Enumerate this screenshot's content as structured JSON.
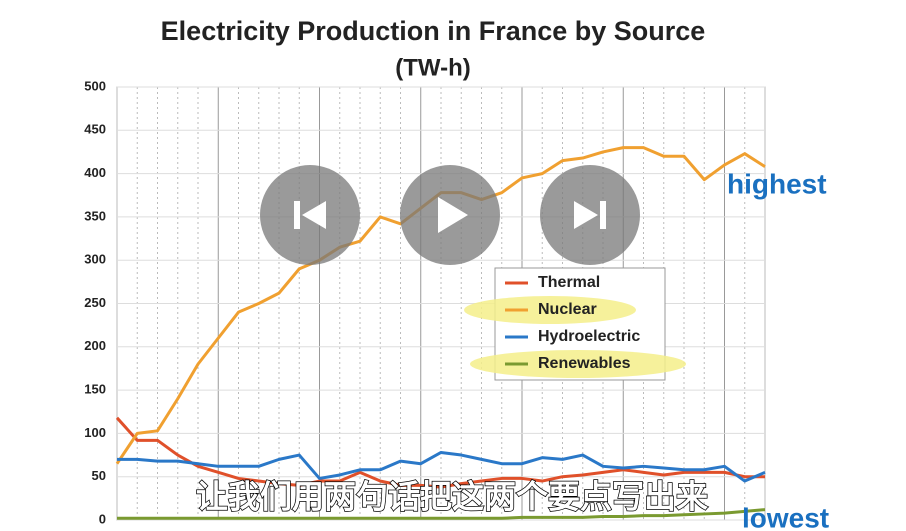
{
  "chart_data": {
    "type": "line",
    "title": "Electricity Production in France by Source",
    "subtitle": "(TW-h)",
    "categories": [
      null,
      null,
      null,
      null,
      null,
      null,
      null,
      null,
      null,
      null,
      null,
      null,
      null,
      null,
      null,
      null,
      null,
      null,
      null,
      null,
      null,
      null,
      null,
      null,
      null,
      null,
      null,
      null,
      null,
      null,
      null,
      null,
      null
    ],
    "series": [
      {
        "name": "Thermal",
        "color": "#e0502a",
        "values": [
          118,
          92,
          92,
          75,
          62,
          55,
          48,
          45,
          42,
          40,
          45,
          45,
          55,
          45,
          40,
          40,
          38,
          42,
          45,
          48,
          48,
          45,
          50,
          52,
          55,
          58,
          55,
          52,
          55,
          55,
          55,
          50,
          50
        ]
      },
      {
        "name": "Nuclear",
        "color": "#f0a030",
        "values": [
          65,
          100,
          103,
          140,
          180,
          210,
          240,
          250,
          262,
          290,
          300,
          315,
          322,
          350,
          342,
          360,
          378,
          378,
          370,
          378,
          395,
          400,
          415,
          418,
          425,
          430,
          430,
          420,
          420,
          393,
          410,
          423,
          408
        ]
      },
      {
        "name": "Hydroelectric",
        "color": "#2a78c8",
        "values": [
          70,
          70,
          68,
          68,
          65,
          62,
          62,
          62,
          70,
          75,
          48,
          52,
          58,
          58,
          68,
          65,
          78,
          75,
          70,
          65,
          65,
          72,
          70,
          75,
          62,
          60,
          62,
          60,
          58,
          58,
          62,
          45,
          55
        ]
      },
      {
        "name": "Renewables",
        "color": "#7a9a30",
        "values": [
          2,
          2,
          2,
          2,
          2,
          2,
          2,
          2,
          2,
          2,
          2,
          2,
          2,
          2,
          2,
          2,
          2,
          2,
          2,
          2,
          3,
          3,
          3,
          3,
          4,
          4,
          5,
          5,
          6,
          7,
          8,
          10,
          12
        ]
      }
    ],
    "ylim": [
      0,
      500
    ],
    "yticks": [
      0,
      50,
      100,
      150,
      200,
      250,
      300,
      350,
      400,
      450,
      500
    ],
    "grid": true,
    "annotations": [
      "highest",
      "lowest"
    ]
  },
  "caption": "让我们用两句话把这两个要点写出来"
}
